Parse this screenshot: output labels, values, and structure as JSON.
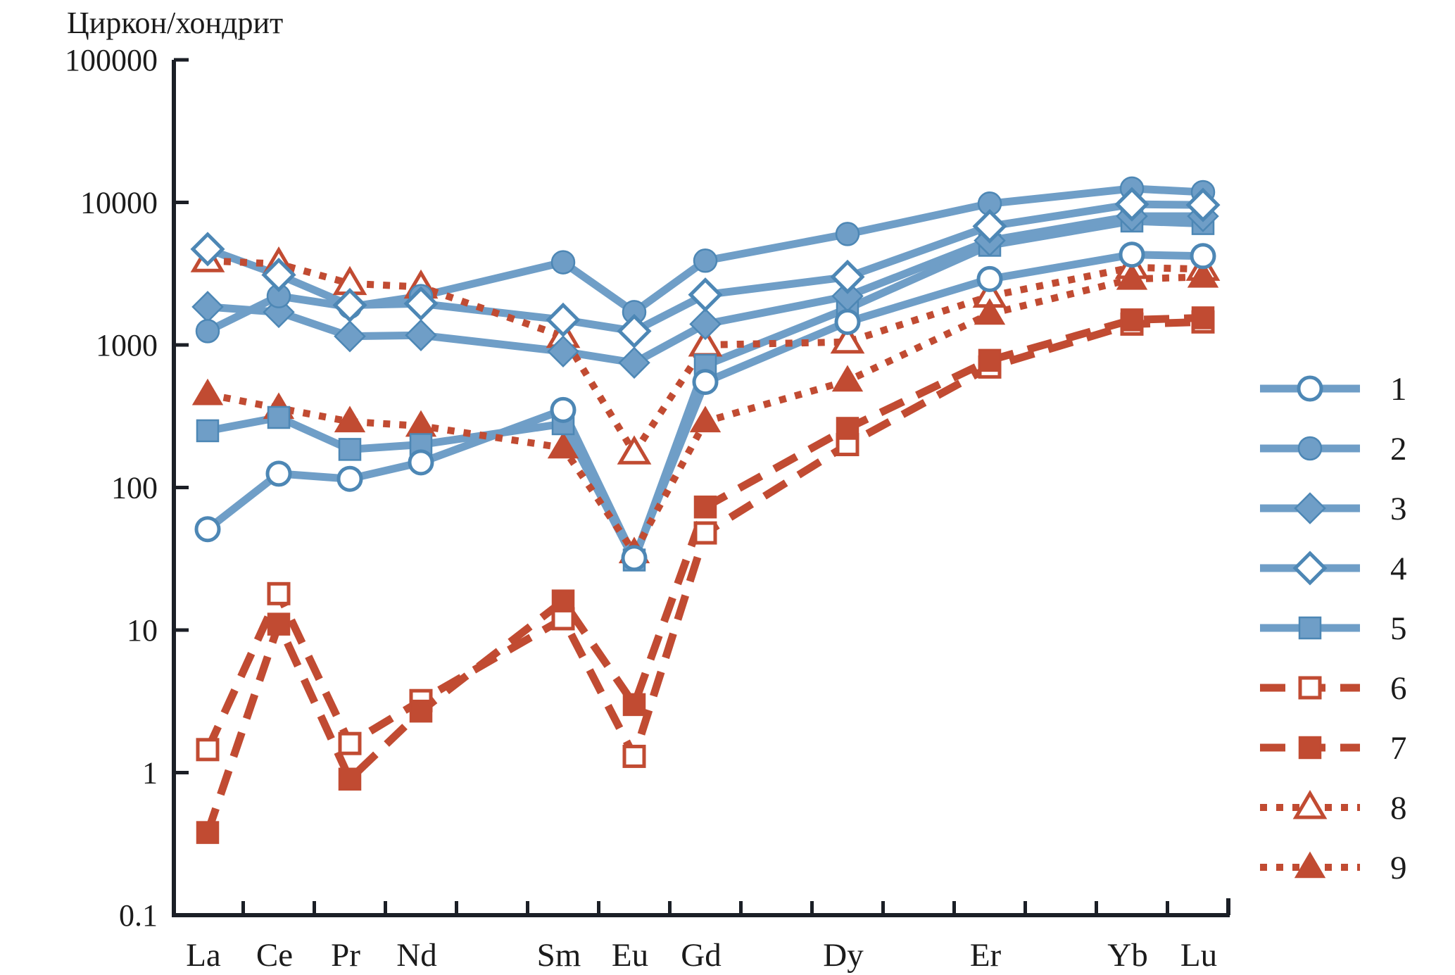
{
  "title": "Циркон/хондрит",
  "colors": {
    "blue": "#6f9ec7",
    "blue_stroke": "#4d87b5",
    "red": "#c14b32",
    "axis": "#1b1f26",
    "background": "#ffffff"
  },
  "chart_data": {
    "type": "line",
    "title": "Циркон/хондрит",
    "y_axis": {
      "scale": "log",
      "ylim": [
        0.1,
        100000
      ],
      "tick_labels": [
        "100000",
        "10000",
        "1000",
        "100",
        "10",
        "1",
        "0.1"
      ],
      "tick_values": [
        100000,
        10000,
        1000,
        100,
        10,
        1,
        0.1
      ],
      "grid": false
    },
    "x_axis": {
      "categories": [
        "La",
        "Ce",
        "Pr",
        "Nd",
        "Sm",
        "Eu",
        "Gd",
        "Dy",
        "Er",
        "Yb",
        "Lu"
      ],
      "positions": [
        0,
        1,
        2,
        3,
        5,
        6,
        7,
        9,
        11,
        13,
        14
      ],
      "minor_tick_positions": [
        0.5,
        1.5,
        2.5,
        3.5,
        4.5,
        5.5,
        6.5,
        7.5,
        8.5,
        9.5,
        10.5,
        11.5,
        12.5,
        13.5
      ]
    },
    "legend_position": "right",
    "series": [
      {
        "id": 1,
        "label": "1",
        "group": "blue",
        "line": "solid",
        "marker": "circle-open",
        "values": [
          51,
          125,
          115,
          150,
          350,
          32,
          550,
          1450,
          2900,
          4300,
          4200
        ]
      },
      {
        "id": 2,
        "label": "2",
        "group": "blue",
        "line": "solid",
        "marker": "circle-filled",
        "values": [
          1250,
          2200,
          1850,
          2200,
          3800,
          1700,
          3900,
          6000,
          9800,
          12500,
          11800
        ]
      },
      {
        "id": 3,
        "label": "3",
        "group": "blue",
        "line": "solid",
        "marker": "diamond-filled",
        "values": [
          1850,
          1700,
          1150,
          1170,
          900,
          750,
          1400,
          2200,
          5400,
          8000,
          8000
        ]
      },
      {
        "id": 4,
        "label": "4",
        "group": "blue",
        "line": "solid",
        "marker": "diamond-open",
        "values": [
          4700,
          3100,
          1900,
          1950,
          1500,
          1250,
          2250,
          3000,
          6800,
          9700,
          9600
        ]
      },
      {
        "id": 5,
        "label": "5",
        "group": "blue",
        "line": "solid",
        "marker": "square-filled",
        "values": [
          250,
          310,
          185,
          200,
          280,
          31,
          720,
          1800,
          5000,
          7400,
          7100
        ]
      },
      {
        "id": 6,
        "label": "6",
        "group": "red",
        "line": "dashed",
        "marker": "square-open",
        "values": [
          1.45,
          18,
          1.6,
          3.2,
          12,
          1.3,
          48,
          200,
          700,
          1400,
          1450
        ]
      },
      {
        "id": 7,
        "label": "7",
        "group": "red",
        "line": "dashed",
        "marker": "square-filled",
        "values": [
          0.38,
          11,
          0.9,
          2.7,
          16,
          3.0,
          73,
          260,
          780,
          1500,
          1550
        ]
      },
      {
        "id": 8,
        "label": "8",
        "group": "red",
        "line": "dotted",
        "marker": "triangle-open",
        "values": [
          3900,
          3700,
          2700,
          2550,
          1150,
          175,
          1000,
          1050,
          2200,
          3500,
          3400
        ]
      },
      {
        "id": 9,
        "label": "9",
        "group": "red",
        "line": "dotted",
        "marker": "triangle-filled",
        "values": [
          450,
          360,
          290,
          270,
          190,
          35,
          290,
          560,
          1650,
          2900,
          3000
        ]
      }
    ],
    "legend_labels": [
      "1",
      "2",
      "3",
      "4",
      "5",
      "6",
      "7",
      "8",
      "9"
    ]
  }
}
